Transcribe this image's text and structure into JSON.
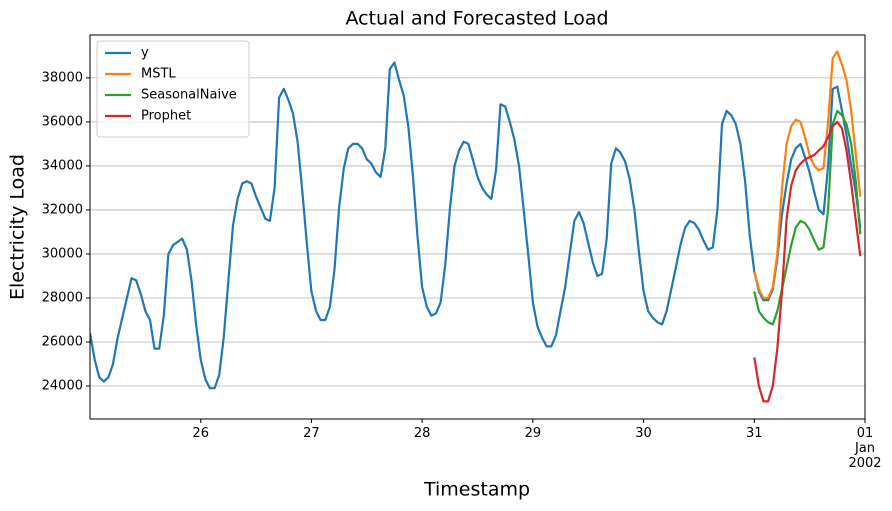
{
  "chart_data": {
    "type": "line",
    "title": "Actual and Forecasted Load",
    "xlabel": "Timestamp",
    "ylabel": "Electricity Load",
    "xlim": [
      25,
      32
    ],
    "ylim": [
      22500,
      39950
    ],
    "xticks": [
      26,
      27,
      28,
      29,
      30,
      31,
      {
        "value": 32,
        "label": "01\nJan\n2002"
      }
    ],
    "yticks": [
      24000,
      26000,
      28000,
      30000,
      32000,
      34000,
      36000,
      38000
    ],
    "grid": "y",
    "legend": "upper left",
    "series": [
      {
        "name": "y",
        "color": "#1f77b4",
        "x": [
          25,
          25.042,
          25.083,
          25.125,
          25.167,
          25.208,
          25.25,
          25.333,
          25.375,
          25.417,
          25.458,
          25.5,
          25.542,
          25.583,
          25.625,
          25.667,
          25.708,
          25.75,
          25.833,
          25.875,
          25.917,
          25.958,
          26,
          26.042,
          26.083,
          26.125,
          26.167,
          26.208,
          26.25,
          26.292,
          26.333,
          26.375,
          26.417,
          26.458,
          26.5,
          26.542,
          26.583,
          26.625,
          26.667,
          26.708,
          26.75,
          26.792,
          26.833,
          26.875,
          26.917,
          26.958,
          27,
          27.042,
          27.083,
          27.125,
          27.167,
          27.208,
          27.25,
          27.292,
          27.333,
          27.375,
          27.417,
          27.458,
          27.5,
          27.542,
          27.583,
          27.625,
          27.667,
          27.708,
          27.75,
          27.792,
          27.833,
          27.875,
          27.917,
          27.958,
          28,
          28.042,
          28.083,
          28.125,
          28.167,
          28.208,
          28.25,
          28.292,
          28.333,
          28.375,
          28.417,
          28.458,
          28.5,
          28.542,
          28.583,
          28.625,
          28.667,
          28.708,
          28.75,
          28.792,
          28.833,
          28.875,
          28.917,
          28.958,
          29,
          29.042,
          29.083,
          29.125,
          29.167,
          29.208,
          29.25,
          29.292,
          29.333,
          29.375,
          29.417,
          29.458,
          29.5,
          29.542,
          29.583,
          29.625,
          29.667,
          29.708,
          29.75,
          29.792,
          29.833,
          29.875,
          29.917,
          29.958,
          30,
          30.042,
          30.083,
          30.125,
          30.167,
          30.208,
          30.25,
          30.292,
          30.333,
          30.375,
          30.417,
          30.458,
          30.5,
          30.542,
          30.583,
          30.625,
          30.667,
          30.708,
          30.75,
          30.792,
          30.833,
          30.875,
          30.917,
          30.958,
          31,
          31.042,
          31.083,
          31.125,
          31.167,
          31.208,
          31.25,
          31.292,
          31.333,
          31.375,
          31.417,
          31.458,
          31.5,
          31.542,
          31.583,
          31.625,
          31.667,
          31.708,
          31.75,
          31.792,
          31.833,
          31.875,
          31.917,
          31.958
        ],
        "values": [
          26400,
          25200,
          24400,
          24200,
          24400,
          25000,
          26200,
          28000,
          28900,
          28800,
          28200,
          27400,
          27000,
          25700,
          25700,
          27200,
          30000,
          30400,
          30700,
          30200,
          28800,
          26800,
          25200,
          24300,
          23900,
          23900,
          24500,
          26200,
          28800,
          31300,
          32500,
          33200,
          33300,
          33200,
          32600,
          32100,
          31600,
          31500,
          33000,
          37100,
          37500,
          37000,
          36400,
          35100,
          32900,
          30500,
          28300,
          27400,
          27000,
          27000,
          27600,
          29300,
          32100,
          33900,
          34800,
          35000,
          35000,
          34800,
          34300,
          34100,
          33700,
          33500,
          34800,
          38400,
          38700,
          37900,
          37200,
          35800,
          33500,
          30800,
          28500,
          27600,
          27200,
          27300,
          27800,
          29500,
          32000,
          34000,
          34700,
          35100,
          35000,
          34300,
          33500,
          33000,
          32700,
          32500,
          33800,
          36800,
          36700,
          36000,
          35200,
          34000,
          32000,
          30000,
          27800,
          26700,
          26200,
          25800,
          25800,
          26300,
          27400,
          28500,
          30000,
          31500,
          31900,
          31400,
          30500,
          29600,
          29000,
          29100,
          30700,
          34100,
          34800,
          34600,
          34200,
          33400,
          32000,
          30100,
          28300,
          27400,
          27100,
          26900,
          26800,
          27400,
          28400,
          29400,
          30400,
          31200,
          31500,
          31400,
          31100,
          30600,
          30200,
          30300,
          32000,
          35900,
          36500,
          36300,
          35900,
          35000,
          33300,
          30900,
          29200,
          28300,
          27900,
          27900,
          28400,
          29800,
          31800,
          33200,
          34300,
          34800,
          35000,
          34400,
          33700,
          32800,
          32000,
          31800,
          34000,
          37500,
          37600,
          36500,
          35400,
          34000,
          32800,
          31200
        ]
      },
      {
        "name": "MSTL",
        "color": "#ff7f0e",
        "x": [
          31,
          31.042,
          31.083,
          31.125,
          31.167,
          31.208,
          31.25,
          31.292,
          31.333,
          31.375,
          31.417,
          31.458,
          31.5,
          31.542,
          31.583,
          31.625,
          31.667,
          31.708,
          31.75,
          31.792,
          31.833,
          31.875,
          31.917,
          31.958
        ],
        "values": [
          29200,
          28400,
          28000,
          28000,
          28500,
          30000,
          33000,
          35000,
          35800,
          36100,
          36000,
          35300,
          34500,
          34000,
          33800,
          33900,
          36000,
          38900,
          39200,
          38600,
          37900,
          36500,
          34500,
          32600
        ]
      },
      {
        "name": "SeasonalNaive",
        "color": "#2ca02c",
        "x": [
          31,
          31.042,
          31.083,
          31.125,
          31.167,
          31.208,
          31.25,
          31.292,
          31.333,
          31.375,
          31.417,
          31.458,
          31.5,
          31.542,
          31.583,
          31.625,
          31.667,
          31.708,
          31.75,
          31.792,
          31.833,
          31.875,
          31.917,
          31.958
        ],
        "values": [
          28300,
          27400,
          27100,
          26900,
          26800,
          27400,
          28400,
          29400,
          30400,
          31200,
          31500,
          31400,
          31100,
          30600,
          30200,
          30300,
          32000,
          35900,
          36500,
          36300,
          35900,
          35000,
          33300,
          30900
        ]
      },
      {
        "name": "Prophet",
        "color": "#d62728",
        "x": [
          31,
          31.042,
          31.083,
          31.125,
          31.167,
          31.208,
          31.25,
          31.292,
          31.333,
          31.375,
          31.417,
          31.458,
          31.5,
          31.542,
          31.583,
          31.625,
          31.667,
          31.708,
          31.75,
          31.792,
          31.833,
          31.875,
          31.917,
          31.958
        ],
        "values": [
          25300,
          24000,
          23300,
          23300,
          24000,
          25700,
          28300,
          31600,
          33100,
          33800,
          34100,
          34300,
          34400,
          34500,
          34700,
          34900,
          35300,
          35800,
          36000,
          35700,
          34700,
          33200,
          31500,
          29900
        ]
      }
    ]
  }
}
